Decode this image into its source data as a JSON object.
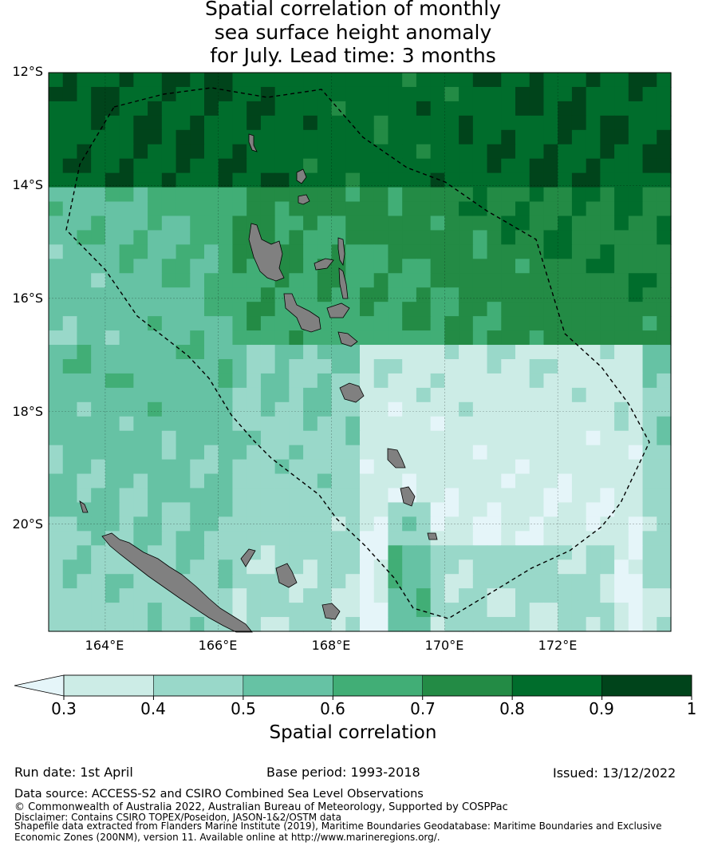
{
  "title": {
    "line1": "Spatial correlation of monthly",
    "line2": "sea surface height anomaly",
    "line3": "for July. Lead time: 3 months"
  },
  "map": {
    "lat_labels": [
      "12°S",
      "14°S",
      "16°S",
      "18°S",
      "20°S"
    ],
    "lon_labels": [
      "164°E",
      "166°E",
      "168°E",
      "170°E",
      "172°E"
    ],
    "lat_range": [
      -21.9,
      -12.0
    ],
    "lon_range": [
      163.0,
      174.0
    ],
    "land_color": "#808080",
    "boundary_style": "dashed"
  },
  "colorbar": {
    "label": "Spatial correlation",
    "ticks": [
      "0.3",
      "0.4",
      "0.5",
      "0.6",
      "0.7",
      "0.8",
      "0.9",
      "1"
    ],
    "colors": [
      "#e5f5f9",
      "#ccece6",
      "#99d8c9",
      "#66c2a4",
      "#41ae76",
      "#238b45",
      "#006d2c",
      "#00441b"
    ],
    "extend": "min"
  },
  "footer": {
    "run_date": "Run date: 1st April",
    "base_period": "Base period: 1993-2018",
    "issued": "Issued: 13/12/2022",
    "data_source": "Data source: ACCESS-S2 and CSIRO Combined Sea Level Observations",
    "copyright": "© Commonwealth of Australia 2022, Australian Bureau of Meteorology, Supported by COSPPac",
    "disclaimer": "Disclaimer: Contains CSIRO TOPEX/Poseidon, JASON-1&2/OSTM data",
    "shapefile_1": "Shapefile data extracted from Flanders Marine Institute (2019), Maritime Boundaries Geodatabase: Maritime Boundaries and Exclusive",
    "shapefile_2": "Economic Zones (200NM), version 11. Available online at http://www.marineregions.org/."
  }
}
